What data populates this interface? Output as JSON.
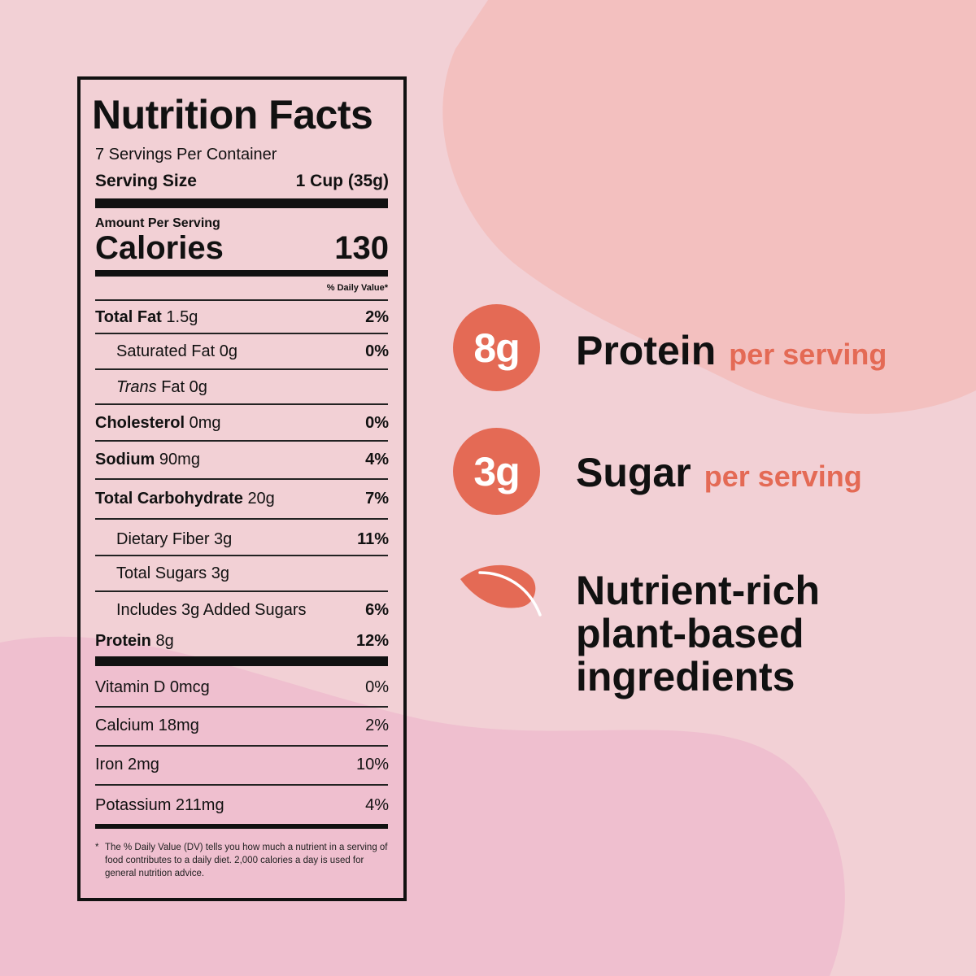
{
  "colors": {
    "background": "#f2d0d5",
    "blob_top_right": "#f3c0bf",
    "blob_bottom_left": "#efbfcf",
    "accent": "#e46a55",
    "text": "#111111"
  },
  "label": {
    "title": "Nutrition Facts",
    "servings": "7 Servings Per Container",
    "serving_size_label": "Serving Size",
    "serving_size_value": "1 Cup (35g)",
    "amount_per_serving": "Amount Per Serving",
    "calories_label": "Calories",
    "calories_value": "130",
    "dv_header": "% Daily Value*",
    "nutrients": [
      {
        "name": "Total Fat",
        "amount": "1.5g",
        "dv": "2%"
      },
      {
        "name": "Saturated Fat",
        "amount": "0g",
        "dv": "0%"
      },
      {
        "name": "Trans",
        "amount": "Fat 0g",
        "dv": ""
      },
      {
        "name": "Cholesterol",
        "amount": "0mg",
        "dv": "0%"
      },
      {
        "name": "Sodium",
        "amount": "90mg",
        "dv": "4%"
      },
      {
        "name": "Total Carbohydrate",
        "amount": "20g",
        "dv": "7%"
      },
      {
        "name": "Dietary Fiber",
        "amount": "3g",
        "dv": "11%"
      },
      {
        "name": "Total Sugars",
        "amount": "3g",
        "dv": ""
      },
      {
        "name": "Includes 3g Added Sugars",
        "amount": "",
        "dv": "6%"
      },
      {
        "name": "Protein",
        "amount": "8g",
        "dv": "12%"
      }
    ],
    "vitamins": [
      {
        "name": "Vitamin D 0mcg",
        "dv": "0%"
      },
      {
        "name": "Calcium 18mg",
        "dv": "2%"
      },
      {
        "name": "Iron 2mg",
        "dv": "10%"
      },
      {
        "name": "Potassium 211mg",
        "dv": "4%"
      }
    ],
    "footnote_mark": "*",
    "footnote": "The % Daily Value (DV) tells you how much a nutrient in a serving of food contributes to a daily diet. 2,000 calories a day is used for general nutrition advice."
  },
  "claims": [
    {
      "badge": "8g",
      "title": "Protein",
      "sub": "per serving"
    },
    {
      "badge": "3g",
      "title": "Sugar",
      "sub": "per serving"
    },
    {
      "icon": "leaf-icon",
      "lines": [
        "Nutrient-rich",
        "plant-based",
        "ingredients"
      ]
    }
  ]
}
